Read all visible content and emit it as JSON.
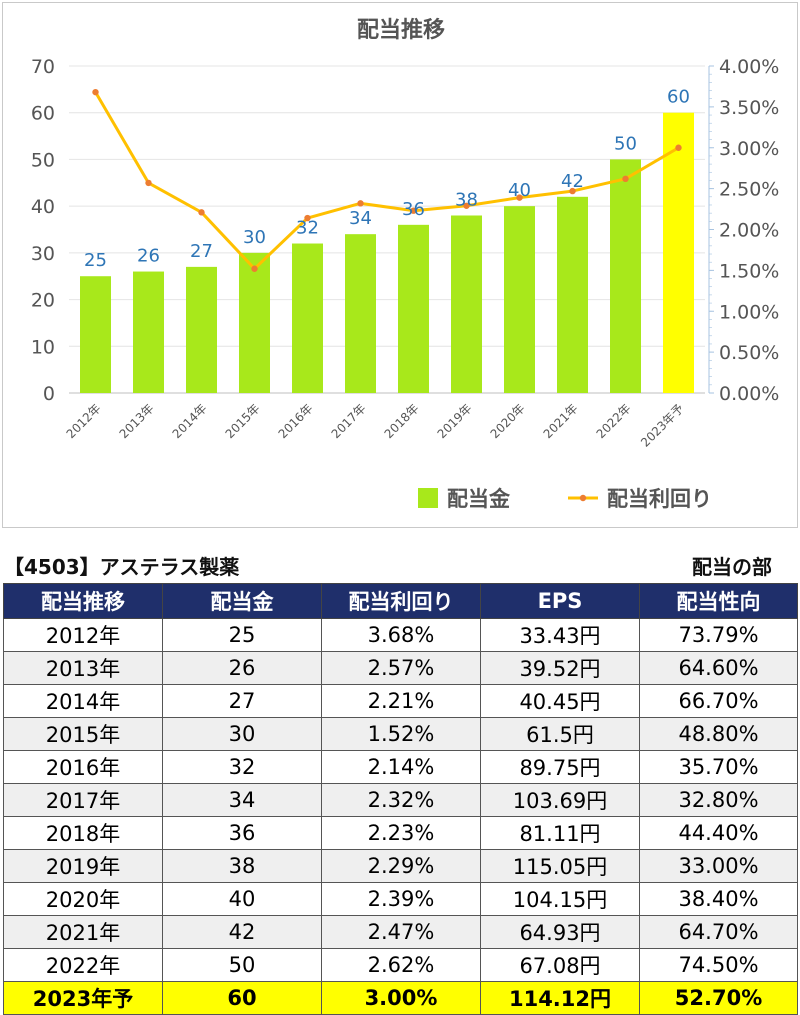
{
  "chart_data": {
    "type": "bar+line",
    "title": "配当推移",
    "categories": [
      "2012年",
      "2013年",
      "2014年",
      "2015年",
      "2016年",
      "2017年",
      "2018年",
      "2019年",
      "2020年",
      "2021年",
      "2022年",
      "2023年予"
    ],
    "series": [
      {
        "name": "配当金",
        "type": "bar",
        "axis": "left",
        "values": [
          25,
          26,
          27,
          30,
          32,
          34,
          36,
          38,
          40,
          42,
          50,
          60
        ],
        "color": "#a8e81b",
        "highlight_color": "#ffff00",
        "highlight_index": 11
      },
      {
        "name": "配当利回り",
        "type": "line",
        "axis": "right",
        "values": [
          3.68,
          2.57,
          2.21,
          1.52,
          2.14,
          2.32,
          2.23,
          2.29,
          2.39,
          2.47,
          2.62,
          3.0
        ],
        "color": "#ffc000",
        "marker_color": "#ed7d31"
      }
    ],
    "data_labels": [
      "25",
      "26",
      "27",
      "30",
      "32",
      "34",
      "36",
      "38",
      "40",
      "42",
      "50",
      "60"
    ],
    "y_left": {
      "min": 0,
      "max": 70,
      "ticks": [
        "0",
        "10",
        "20",
        "30",
        "40",
        "50",
        "60",
        "70"
      ]
    },
    "y_right": {
      "min": 0,
      "max": 4,
      "ticks": [
        "0.00%",
        "0.50%",
        "1.00%",
        "1.50%",
        "2.00%",
        "2.50%",
        "3.00%",
        "3.50%",
        "4.00%"
      ]
    },
    "legend_position": "bottom-right",
    "grid": true
  },
  "table": {
    "company": "【4503】アステラス製薬",
    "section": "配当の部",
    "headers": [
      "配当推移",
      "配当金",
      "配当利回り",
      "EPS",
      "配当性向"
    ],
    "rows": [
      [
        "2012年",
        "25",
        "3.68%",
        "33.43円",
        "73.79%"
      ],
      [
        "2013年",
        "26",
        "2.57%",
        "39.52円",
        "64.60%"
      ],
      [
        "2014年",
        "27",
        "2.21%",
        "40.45円",
        "66.70%"
      ],
      [
        "2015年",
        "30",
        "1.52%",
        "61.5円",
        "48.80%"
      ],
      [
        "2016年",
        "32",
        "2.14%",
        "89.75円",
        "35.70%"
      ],
      [
        "2017年",
        "34",
        "2.32%",
        "103.69円",
        "32.80%"
      ],
      [
        "2018年",
        "36",
        "2.23%",
        "81.11円",
        "44.40%"
      ],
      [
        "2019年",
        "38",
        "2.29%",
        "115.05円",
        "33.00%"
      ],
      [
        "2020年",
        "40",
        "2.39%",
        "104.15円",
        "38.40%"
      ],
      [
        "2021年",
        "42",
        "2.47%",
        "64.93円",
        "64.70%"
      ],
      [
        "2022年",
        "50",
        "2.62%",
        "67.08円",
        "74.50%"
      ],
      [
        "2023年予",
        "60",
        "3.00%",
        "114.12円",
        "52.70%"
      ]
    ],
    "colors": {
      "header_bg": "#1f2f6b",
      "header_text": "#ffffff",
      "alt_row": "#efefef",
      "forecast_row": "#ffff00"
    }
  }
}
